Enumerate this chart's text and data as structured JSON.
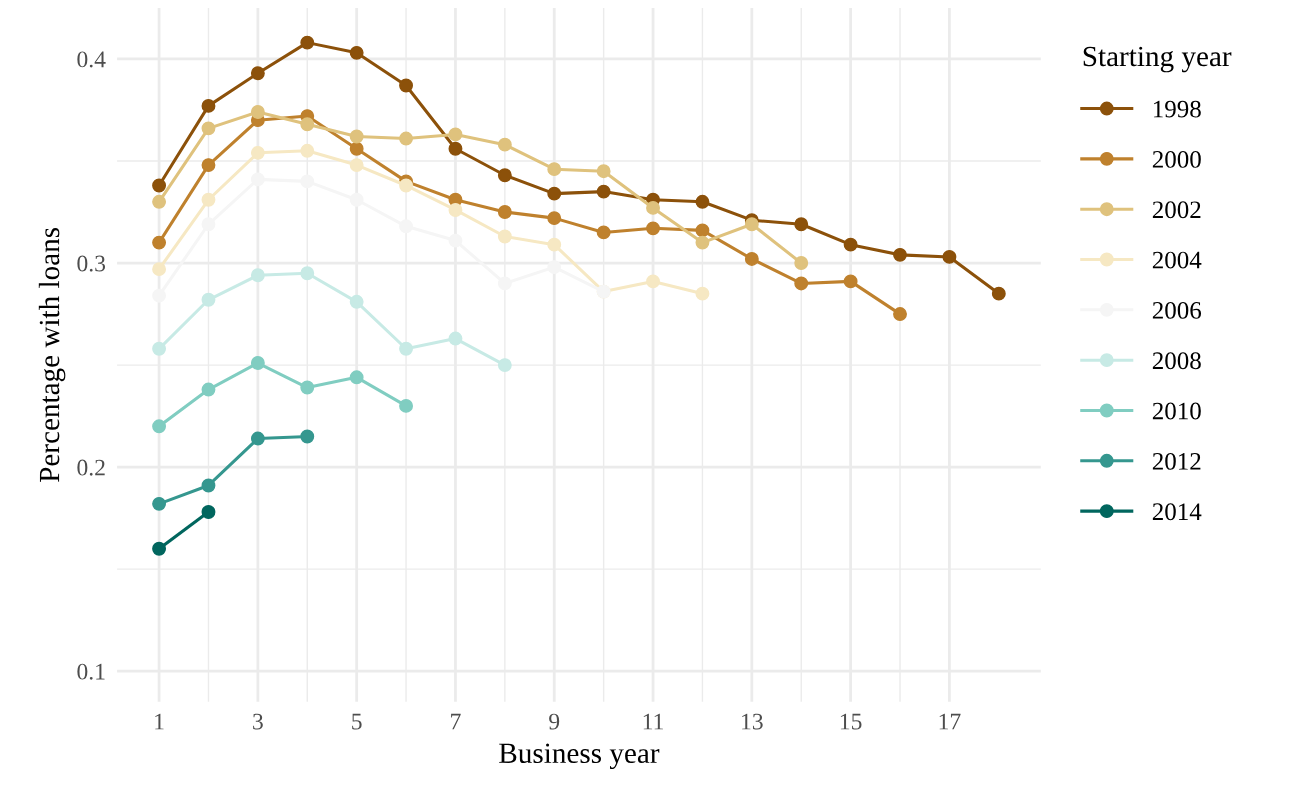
{
  "chart_data": {
    "type": "line",
    "xlabel": "Business year",
    "ylabel": "Percentage with loans",
    "legend_title": "Starting year",
    "legend": "right",
    "grid": true,
    "marker": "circle",
    "line_style": "solid",
    "xlim": [
      0.15,
      18.85
    ],
    "xticks": [
      1,
      3,
      5,
      7,
      9,
      11,
      13,
      15,
      17
    ],
    "ylim": [
      0.085,
      0.425
    ],
    "yticks": [
      0.1,
      0.2,
      0.3,
      0.4
    ],
    "series": [
      {
        "name": "1998",
        "color": "#8c510a",
        "x": [
          1,
          2,
          3,
          4,
          5,
          6,
          7,
          8,
          9,
          10,
          11,
          12,
          13,
          14,
          15,
          16,
          17,
          18
        ],
        "values": [
          0.338,
          0.377,
          0.393,
          0.408,
          0.403,
          0.387,
          0.356,
          0.343,
          0.334,
          0.335,
          0.331,
          0.33,
          0.321,
          0.319,
          0.309,
          0.304,
          0.303,
          0.285
        ]
      },
      {
        "name": "2000",
        "color": "#bf812d",
        "x": [
          1,
          2,
          3,
          4,
          5,
          6,
          7,
          8,
          9,
          10,
          11,
          12,
          13,
          14,
          15,
          16
        ],
        "values": [
          0.31,
          0.348,
          0.37,
          0.372,
          0.356,
          0.34,
          0.331,
          0.325,
          0.322,
          0.315,
          0.317,
          0.316,
          0.302,
          0.29,
          0.291,
          0.275
        ]
      },
      {
        "name": "2002",
        "color": "#dfc27d",
        "x": [
          1,
          2,
          3,
          4,
          5,
          6,
          7,
          8,
          9,
          10,
          11,
          12,
          13,
          14
        ],
        "values": [
          0.33,
          0.366,
          0.374,
          0.368,
          0.362,
          0.361,
          0.363,
          0.358,
          0.346,
          0.345,
          0.327,
          0.31,
          0.319,
          0.3
        ]
      },
      {
        "name": "2004",
        "color": "#f6e8c3",
        "x": [
          1,
          2,
          3,
          4,
          5,
          6,
          7,
          8,
          9,
          10,
          11,
          12
        ],
        "values": [
          0.297,
          0.331,
          0.354,
          0.355,
          0.348,
          0.338,
          0.326,
          0.313,
          0.309,
          0.286,
          0.291,
          0.285
        ]
      },
      {
        "name": "2006",
        "color": "#f5f5f5",
        "x": [
          1,
          2,
          3,
          4,
          5,
          6,
          7,
          8,
          9,
          10
        ],
        "values": [
          0.284,
          0.319,
          0.341,
          0.34,
          0.331,
          0.318,
          0.311,
          0.29,
          0.298,
          0.286
        ]
      },
      {
        "name": "2008",
        "color": "#c7eae5",
        "x": [
          1,
          2,
          3,
          4,
          5,
          6,
          7,
          8
        ],
        "values": [
          0.258,
          0.282,
          0.294,
          0.295,
          0.281,
          0.258,
          0.263,
          0.25
        ]
      },
      {
        "name": "2010",
        "color": "#80cdc1",
        "x": [
          1,
          2,
          3,
          4,
          5,
          6
        ],
        "values": [
          0.22,
          0.238,
          0.251,
          0.239,
          0.244,
          0.23
        ]
      },
      {
        "name": "2012",
        "color": "#35978f",
        "x": [
          1,
          2,
          3,
          4
        ],
        "values": [
          0.182,
          0.191,
          0.214,
          0.215
        ]
      },
      {
        "name": "2014",
        "color": "#01665e",
        "x": [
          1,
          2
        ],
        "values": [
          0.16,
          0.178
        ]
      }
    ]
  }
}
